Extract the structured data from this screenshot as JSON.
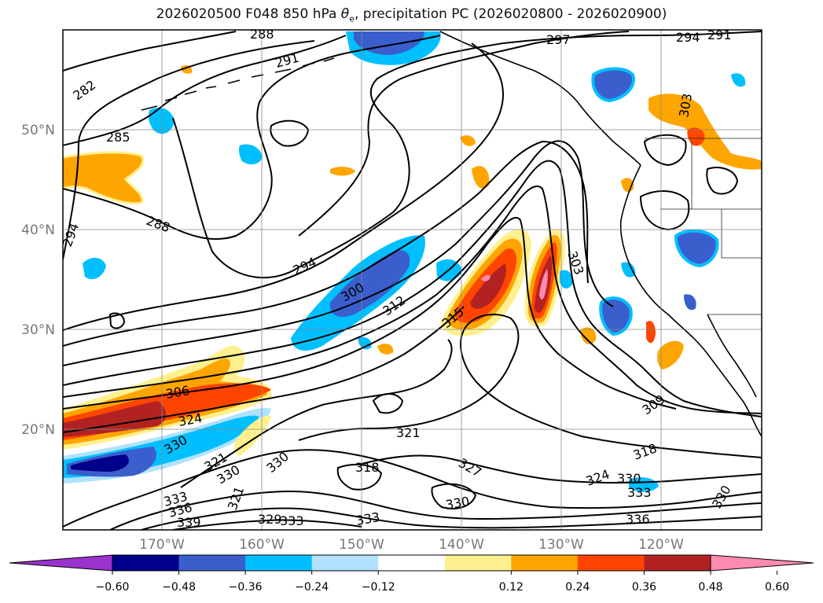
{
  "title": {
    "before": "2026020500 F048 850 hPa ",
    "symbol": "θ",
    "subscript": "e",
    "after": ", precipitation PC (2026020800 - 2026020900)"
  },
  "lat_labels": [
    "50°N",
    "40°N",
    "30°N",
    "20°N"
  ],
  "lon_labels": [
    "170°W",
    "160°W",
    "150°W",
    "140°W",
    "130°W",
    "120°W"
  ],
  "contour_labels": [
    "288",
    "291",
    "297",
    "294",
    "291",
    "282",
    "285",
    "303",
    "288",
    "294",
    "294",
    "300",
    "312",
    "315",
    "303",
    "306",
    "324",
    "330",
    "321",
    "330",
    "318",
    "327",
    "309",
    "318",
    "324",
    "330",
    "333",
    "336",
    "330",
    "321",
    "333",
    "336",
    "339",
    "321",
    "329",
    "333",
    "333",
    "330",
    "330"
  ],
  "colorbar": {
    "ticks": [
      "−0.60",
      "−0.48",
      "−0.36",
      "−0.24",
      "−0.12",
      "0.12",
      "0.24",
      "0.36",
      "0.48",
      "0.60"
    ],
    "colors": [
      "#9a32cd",
      "#00008b",
      "#3a5fcd",
      "#00bfff",
      "#b0e2ff",
      "#ffffff",
      "#fff08f",
      "#ffa500",
      "#ff4500",
      "#b22222",
      "#ff8cb0"
    ]
  }
}
